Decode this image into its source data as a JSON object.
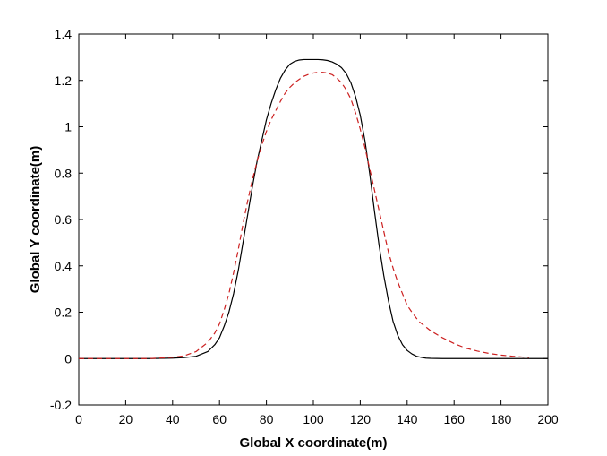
{
  "chart_data": {
    "type": "line",
    "title": "",
    "xlabel": "Global X coordinate(m)",
    "ylabel": "Global Y coordinate(m)",
    "xlim": [
      0,
      200
    ],
    "ylim": [
      -0.2,
      1.4
    ],
    "xticks": [
      0,
      20,
      40,
      60,
      80,
      100,
      120,
      140,
      160,
      180,
      200
    ],
    "yticks": [
      -0.2,
      0,
      0.2,
      0.4,
      0.6,
      0.8,
      1,
      1.2,
      1.4
    ],
    "xtick_labels": [
      "0",
      "20",
      "40",
      "60",
      "80",
      "100",
      "120",
      "140",
      "160",
      "180",
      "200"
    ],
    "ytick_labels": [
      "-0.2",
      "0",
      "0.2",
      "0.4",
      "0.6",
      "0.8",
      "1",
      "1.2",
      "1.4"
    ],
    "grid": false,
    "legend": "none",
    "series": [
      {
        "color": "#000000",
        "style": "solid",
        "x": [
          0,
          10,
          20,
          30,
          40,
          45,
          50,
          55,
          58,
          60,
          62,
          64,
          66,
          68,
          70,
          72,
          74,
          76,
          78,
          80,
          82,
          84,
          86,
          88,
          90,
          92,
          94,
          96,
          98,
          100,
          102,
          104,
          106,
          108,
          110,
          112,
          114,
          116,
          118,
          120,
          122,
          124,
          126,
          128,
          130,
          132,
          134,
          136,
          138,
          140,
          142,
          144,
          146,
          148,
          150,
          155,
          160,
          170,
          180,
          190,
          200
        ],
        "y": [
          0,
          0,
          0,
          0,
          0.002,
          0.004,
          0.01,
          0.03,
          0.06,
          0.09,
          0.14,
          0.2,
          0.28,
          0.38,
          0.5,
          0.62,
          0.74,
          0.85,
          0.94,
          1.03,
          1.1,
          1.16,
          1.21,
          1.245,
          1.27,
          1.282,
          1.288,
          1.29,
          1.29,
          1.29,
          1.29,
          1.289,
          1.286,
          1.28,
          1.27,
          1.255,
          1.23,
          1.19,
          1.13,
          1.05,
          0.94,
          0.8,
          0.64,
          0.49,
          0.36,
          0.25,
          0.16,
          0.1,
          0.06,
          0.035,
          0.02,
          0.01,
          0.005,
          0.002,
          0.001,
          0,
          0,
          0,
          0,
          0,
          0
        ]
      },
      {
        "color": "#cc2020",
        "style": "dashed",
        "x": [
          0,
          10,
          20,
          30,
          40,
          45,
          50,
          55,
          58,
          60,
          62,
          64,
          66,
          68,
          70,
          72,
          74,
          76,
          78,
          80,
          82,
          84,
          86,
          88,
          90,
          92,
          94,
          96,
          98,
          100,
          102,
          104,
          106,
          108,
          110,
          112,
          114,
          116,
          118,
          120,
          122,
          124,
          126,
          128,
          130,
          132,
          134,
          136,
          138,
          140,
          142,
          145,
          150,
          155,
          160,
          165,
          170,
          175,
          180,
          185,
          190,
          192
        ],
        "y": [
          0,
          0,
          0,
          0,
          0.005,
          0.012,
          0.03,
          0.07,
          0.11,
          0.15,
          0.21,
          0.28,
          0.37,
          0.47,
          0.58,
          0.68,
          0.77,
          0.85,
          0.92,
          0.98,
          1.03,
          1.07,
          1.11,
          1.145,
          1.17,
          1.19,
          1.205,
          1.218,
          1.226,
          1.232,
          1.235,
          1.235,
          1.232,
          1.225,
          1.21,
          1.19,
          1.16,
          1.12,
          1.06,
          0.99,
          0.91,
          0.82,
          0.73,
          0.64,
          0.55,
          0.46,
          0.39,
          0.33,
          0.28,
          0.23,
          0.2,
          0.16,
          0.12,
          0.09,
          0.065,
          0.045,
          0.032,
          0.022,
          0.015,
          0.01,
          0.006,
          0.005
        ]
      }
    ]
  }
}
